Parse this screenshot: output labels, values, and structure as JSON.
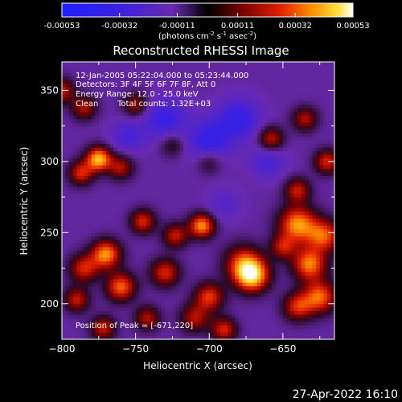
{
  "chart_data": {
    "type": "heatmap",
    "title": "Reconstructed RHESSI Image",
    "xlabel": "Heliocentric X (arcsec)",
    "ylabel": "Heliocentric Y (arcsec)",
    "xlim": [
      -800,
      -615
    ],
    "ylim": [
      175,
      370
    ],
    "x_ticks": [
      -800,
      -750,
      -700,
      -650
    ],
    "x_tick_labels": [
      "−800",
      "−750",
      "−700",
      "−650"
    ],
    "y_ticks": [
      200,
      250,
      300,
      350
    ],
    "y_tick_labels": [
      "200",
      "250",
      "300",
      "350"
    ],
    "colorbar": {
      "range": [
        -0.00053,
        0.00053
      ],
      "ticks": [
        -0.00053,
        -0.00032,
        -0.00011,
        0.00011,
        0.00032,
        0.00053
      ],
      "tick_labels": [
        "-0.00053",
        "-0.00032",
        "-0.00011",
        "0.00011",
        "0.00032",
        "0.00053"
      ],
      "units_text": "(photons cm",
      "units_exp1": "-2",
      "units_mid": " s",
      "units_exp2": "-1",
      "units_end": " asec",
      "units_exp3": "-2",
      "units_close": ")"
    },
    "annotations": {
      "time_range": "12-Jan-2005 05:22:04.000 to 05:23:44.000",
      "detectors": "Detectors: 3F 4F 5F 6F 7F 8F, Att 0",
      "energy": "Energy Range: 12.0 - 25.0 keV",
      "method": "Clean",
      "counts": "Total counts: 1.32E+03",
      "peak": "Position of Peak = [-671,220]"
    },
    "peak": [
      -671,
      220
    ],
    "blobs": [
      {
        "x": -671,
        "y": 220,
        "amp": 1.0,
        "s": 8
      },
      {
        "x": -677,
        "y": 229,
        "amp": 0.6,
        "s": 9
      },
      {
        "x": -775,
        "y": 302,
        "amp": 0.95,
        "s": 6
      },
      {
        "x": -787,
        "y": 292,
        "amp": 0.6,
        "s": 6
      },
      {
        "x": -760,
        "y": 296,
        "amp": 0.5,
        "s": 6
      },
      {
        "x": -705,
        "y": 255,
        "amp": 0.85,
        "s": 6
      },
      {
        "x": -723,
        "y": 248,
        "amp": 0.55,
        "s": 6
      },
      {
        "x": -745,
        "y": 258,
        "amp": 0.6,
        "s": 6
      },
      {
        "x": -640,
        "y": 256,
        "amp": 0.85,
        "s": 9
      },
      {
        "x": -622,
        "y": 248,
        "amp": 0.7,
        "s": 8
      },
      {
        "x": -632,
        "y": 228,
        "amp": 0.8,
        "s": 8
      },
      {
        "x": -650,
        "y": 240,
        "amp": 0.5,
        "s": 6
      },
      {
        "x": -625,
        "y": 205,
        "amp": 0.75,
        "s": 8
      },
      {
        "x": -640,
        "y": 198,
        "amp": 0.6,
        "s": 7
      },
      {
        "x": -770,
        "y": 235,
        "amp": 0.85,
        "s": 7
      },
      {
        "x": -785,
        "y": 225,
        "amp": 0.6,
        "s": 7
      },
      {
        "x": -760,
        "y": 212,
        "amp": 0.75,
        "s": 7
      },
      {
        "x": -790,
        "y": 203,
        "amp": 0.55,
        "s": 6
      },
      {
        "x": -730,
        "y": 222,
        "amp": 0.6,
        "s": 7
      },
      {
        "x": -700,
        "y": 205,
        "amp": 0.65,
        "s": 7
      },
      {
        "x": -710,
        "y": 190,
        "amp": 0.5,
        "s": 7
      },
      {
        "x": -742,
        "y": 190,
        "amp": 0.5,
        "s": 6
      },
      {
        "x": -772,
        "y": 183,
        "amp": 0.55,
        "s": 6
      },
      {
        "x": -800,
        "y": 350,
        "amp": 0.55,
        "s": 6
      },
      {
        "x": -785,
        "y": 338,
        "amp": 0.5,
        "s": 6
      },
      {
        "x": -750,
        "y": 340,
        "amp": 0.45,
        "s": 6
      },
      {
        "x": -658,
        "y": 316,
        "amp": 0.55,
        "s": 6
      },
      {
        "x": -635,
        "y": 330,
        "amp": 0.5,
        "s": 6
      },
      {
        "x": -620,
        "y": 300,
        "amp": 0.6,
        "s": 6
      },
      {
        "x": -640,
        "y": 280,
        "amp": 0.55,
        "s": 6
      },
      {
        "x": -690,
        "y": 182,
        "amp": 0.6,
        "s": 6
      },
      {
        "x": -700,
        "y": 300,
        "amp": 0.3,
        "s": 6
      },
      {
        "x": -725,
        "y": 312,
        "amp": 0.3,
        "s": 6
      },
      {
        "x": -700,
        "y": 315,
        "amp": -0.45,
        "s": 10
      },
      {
        "x": -730,
        "y": 330,
        "amp": -0.4,
        "s": 10
      },
      {
        "x": -680,
        "y": 330,
        "amp": -0.45,
        "s": 10
      },
      {
        "x": -755,
        "y": 318,
        "amp": -0.3,
        "s": 8
      },
      {
        "x": -660,
        "y": 300,
        "amp": -0.3,
        "s": 8
      },
      {
        "x": -690,
        "y": 270,
        "amp": -0.2,
        "s": 8
      }
    ]
  },
  "footer": {
    "timestamp": "27-Apr-2022 16:10"
  }
}
